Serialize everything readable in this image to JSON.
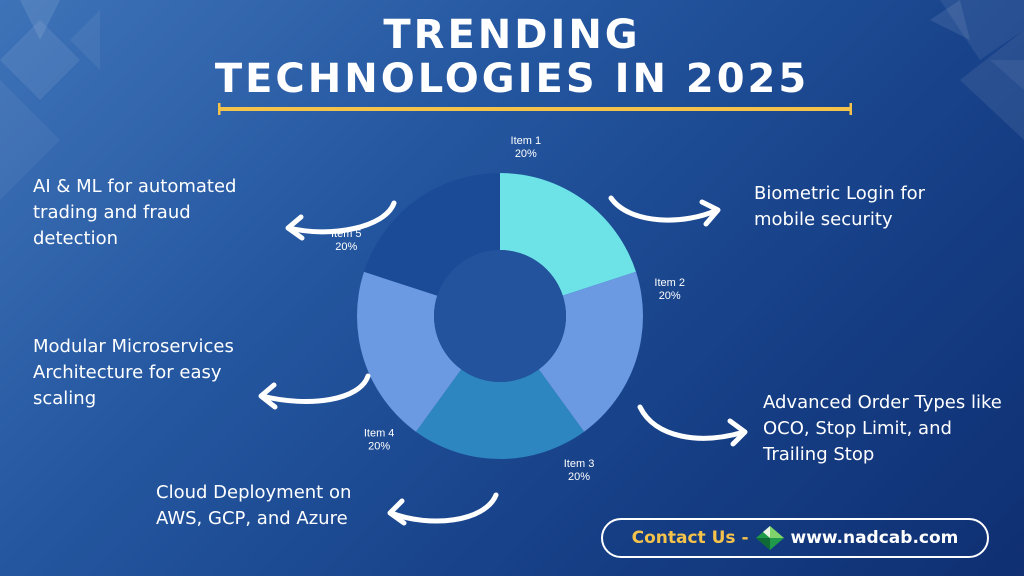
{
  "title": {
    "line1": "TRENDING",
    "line2": "TECHNOLOGIES IN 2025"
  },
  "labels": {
    "item1_desc": "Biometric Login for mobile security",
    "item2_desc": "Advanced Order Types like OCO, Stop Limit, and Trailing Stop",
    "item3_desc": "Cloud Deployment on AWS, GCP, and Azure",
    "item4_desc": "Modular Microservices Architecture for easy scaling",
    "item5_desc": "AI & ML for automated trading and fraud detection"
  },
  "contact": {
    "label": "Contact Us -",
    "url": "www.nadcab.com",
    "logo_icon": "nadcab-logo-icon"
  },
  "colors": {
    "accent": "#f5c24a",
    "item1": "#6de3e8",
    "item2": "#6b9ae3",
    "item3": "#2d86c0",
    "item4": "#6b9ae3",
    "item5": "#1b4a96"
  },
  "chart_data": {
    "type": "pie",
    "style": "donut",
    "slices": [
      {
        "name": "Item 1",
        "value": 20,
        "label": "20%",
        "color": "#6de3e8"
      },
      {
        "name": "Item 2",
        "value": 20,
        "label": "20%",
        "color": "#6b9ae3"
      },
      {
        "name": "Item 3",
        "value": 20,
        "label": "20%",
        "color": "#2d86c0"
      },
      {
        "name": "Item 4",
        "value": 20,
        "label": "20%",
        "color": "#6b9ae3"
      },
      {
        "name": "Item 5",
        "value": 20,
        "label": "20%",
        "color": "#1b4a96"
      }
    ]
  }
}
